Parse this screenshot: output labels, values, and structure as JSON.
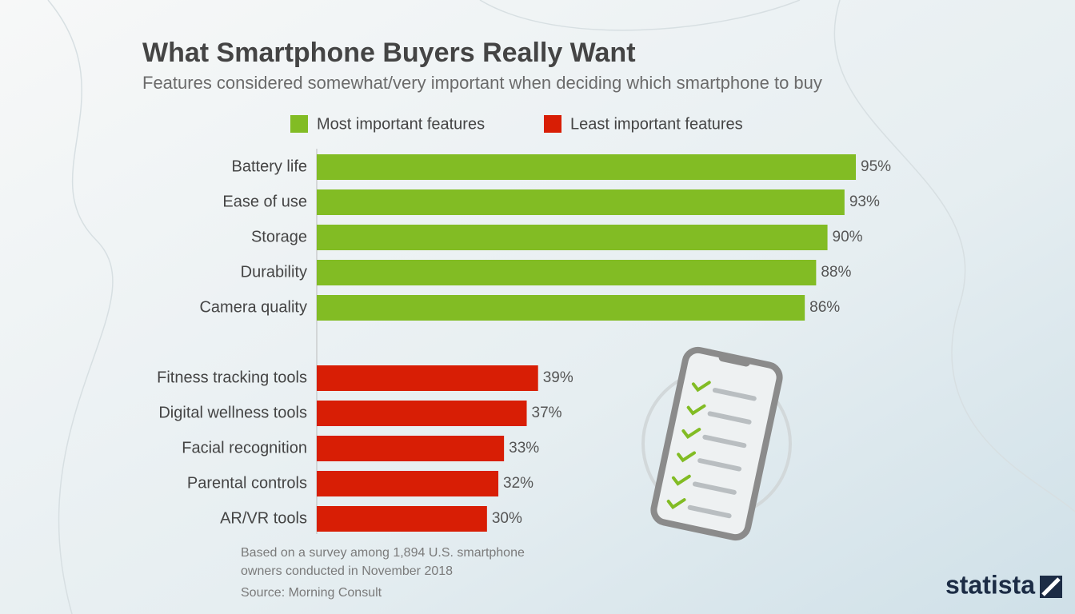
{
  "chart_data": {
    "type": "bar",
    "orientation": "horizontal",
    "title": "What Smartphone Buyers Really Want",
    "subtitle": "Features considered somewhat/very important when deciding which smartphone to buy",
    "categories": [
      "Battery life",
      "Ease of use",
      "Storage",
      "Durability",
      "Camera quality",
      "Fitness tracking tools",
      "Digital wellness tools",
      "Facial recognition",
      "Parental controls",
      "AR/VR tools"
    ],
    "series": [
      {
        "name": "Most important features",
        "color": "#82bc24",
        "values": [
          95,
          93,
          90,
          88,
          86,
          null,
          null,
          null,
          null,
          null
        ],
        "value_labels": [
          "95%",
          "93%",
          "90%",
          "88%",
          "86%",
          null,
          null,
          null,
          null,
          null
        ]
      },
      {
        "name": "Least important features",
        "color": "#d81e05",
        "values": [
          null,
          null,
          null,
          null,
          null,
          39,
          37,
          33,
          32,
          30
        ],
        "value_labels": [
          null,
          null,
          null,
          null,
          null,
          "39%",
          "37%",
          "33%",
          "32%",
          "30%"
        ]
      }
    ],
    "xlim": [
      0,
      100
    ],
    "legend": "top",
    "note": [
      "Based on a survey among 1,894 U.S. smartphone",
      "owners conducted in November 2018"
    ],
    "source": "Source: Morning Consult",
    "brand": "statista"
  }
}
